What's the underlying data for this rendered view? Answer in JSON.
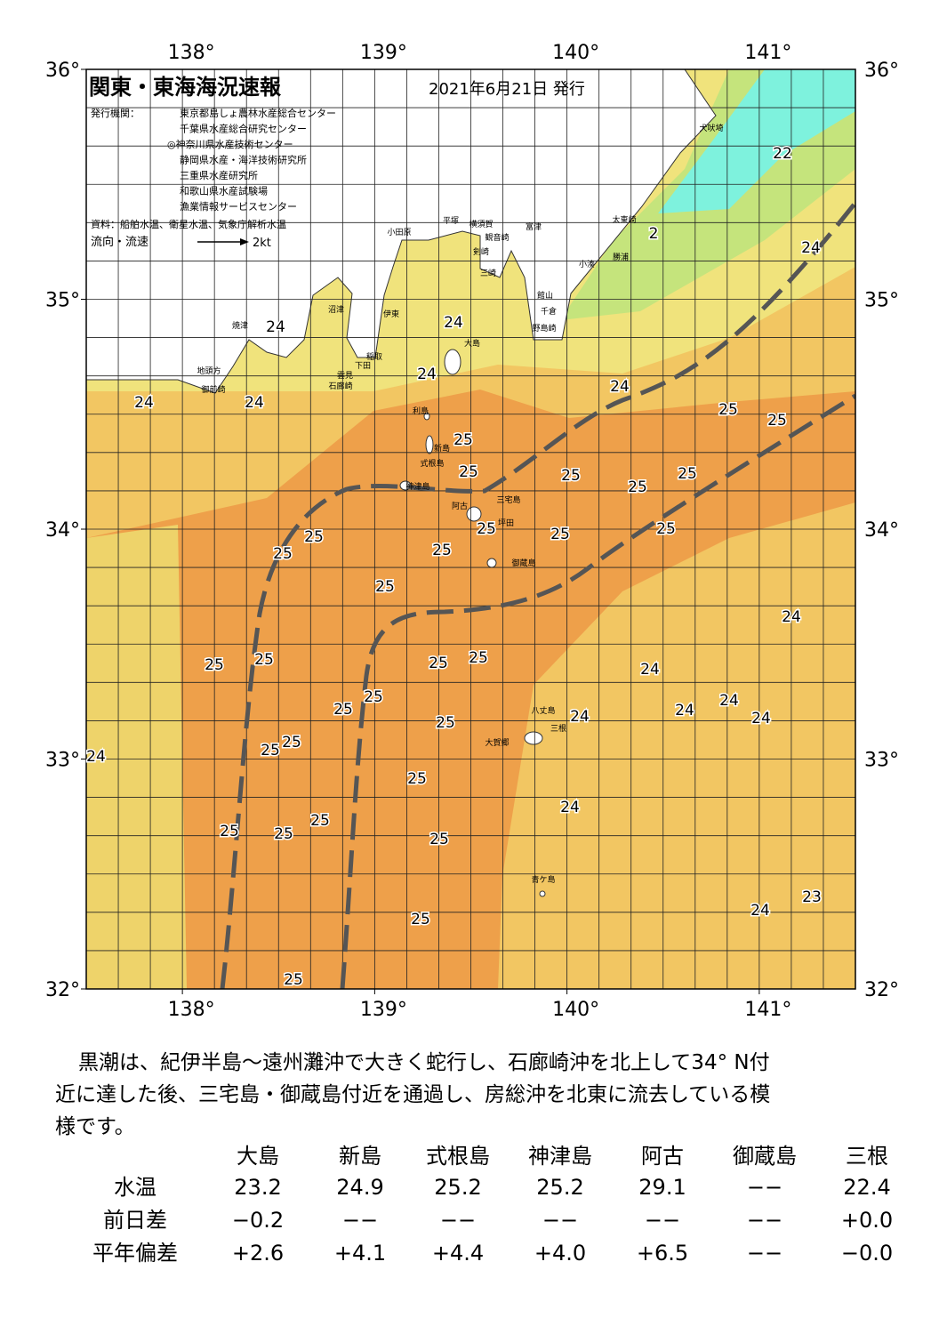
{
  "map": {
    "title": "関東・東海海況速報",
    "date": "2021年6月21日 発行",
    "issuers_label": "発行機関：",
    "issuers": [
      "東京都島しょ農林水産総合センター",
      "千葉県水産総合研究センター",
      "◎神奈川県水産技術センター",
      "静岡県水産・海洋技術研究所",
      "三重県水産研究所",
      "和歌山県水産試験場",
      "漁業情報サービスセンター"
    ],
    "sources": "資料：船舶水温、衛星水温、気象庁解析水温",
    "legend_label": "流向・流速",
    "legend_scale": "2kt",
    "lon_ticks": [
      {
        "value": 138,
        "label": "138°"
      },
      {
        "value": 139,
        "label": "139°"
      },
      {
        "value": 140,
        "label": "140°"
      },
      {
        "value": 141,
        "label": "141°"
      }
    ],
    "lat_ticks": [
      {
        "value": 36,
        "label": "36°"
      },
      {
        "value": 35,
        "label": "35°"
      },
      {
        "value": 34,
        "label": "34°"
      },
      {
        "value": 33,
        "label": "33°"
      },
      {
        "value": 32,
        "label": "32°"
      }
    ],
    "places": [
      "犬吠埼",
      "太東崎",
      "勝浦",
      "小湊",
      "富津",
      "館山",
      "千倉",
      "野島崎",
      "平塚",
      "横須賀",
      "観音崎",
      "小田原",
      "剣崎",
      "三崎",
      "沼津",
      "伊東",
      "大島",
      "稲取",
      "下田",
      "焼津",
      "地頭方",
      "御前崎",
      "雲見",
      "石廊崎",
      "利島",
      "新島",
      "式根島",
      "神津島",
      "三宅島",
      "阿古",
      "坪田",
      "御蔵島",
      "八丈島",
      "三根",
      "大賀郷",
      "青ケ島"
    ],
    "isotherm_labels": [
      24,
      24,
      24,
      24,
      24,
      24,
      22,
      2,
      24,
      25,
      25,
      25,
      25,
      25,
      25,
      25,
      25,
      25,
      25,
      25,
      25,
      25,
      25,
      24,
      25,
      25,
      25,
      25,
      24,
      25,
      25,
      24,
      24,
      24,
      24,
      25,
      24,
      25,
      25,
      25,
      24,
      25,
      25,
      25,
      25,
      23,
      24,
      25,
      25
    ]
  },
  "description_lines": [
    "黒潮は、紀伊半島～遠州灘沖で大きく蛇行し、石廊崎沖を北上して34° N付",
    "近に達した後、三宅島・御蔵島付近を通過し、房総沖を北東に流去している模",
    "様です。"
  ],
  "table": {
    "columns": [
      "大島",
      "新島",
      "式根島",
      "神津島",
      "阿古",
      "御蔵島",
      "三根"
    ],
    "rows": [
      {
        "label": "水温",
        "cells": [
          "23.2",
          "24.9",
          "25.2",
          "25.2",
          "29.1",
          "−−",
          "22.4"
        ]
      },
      {
        "label": "前日差",
        "cells": [
          "−0.2",
          "−−",
          "−−",
          "−−",
          "−−",
          "−−",
          "+0.0"
        ]
      },
      {
        "label": "平年偏差",
        "cells": [
          "+2.6",
          "+4.1",
          "+4.4",
          "+4.0",
          "+6.5",
          "−−",
          "−0.0"
        ]
      }
    ]
  }
}
